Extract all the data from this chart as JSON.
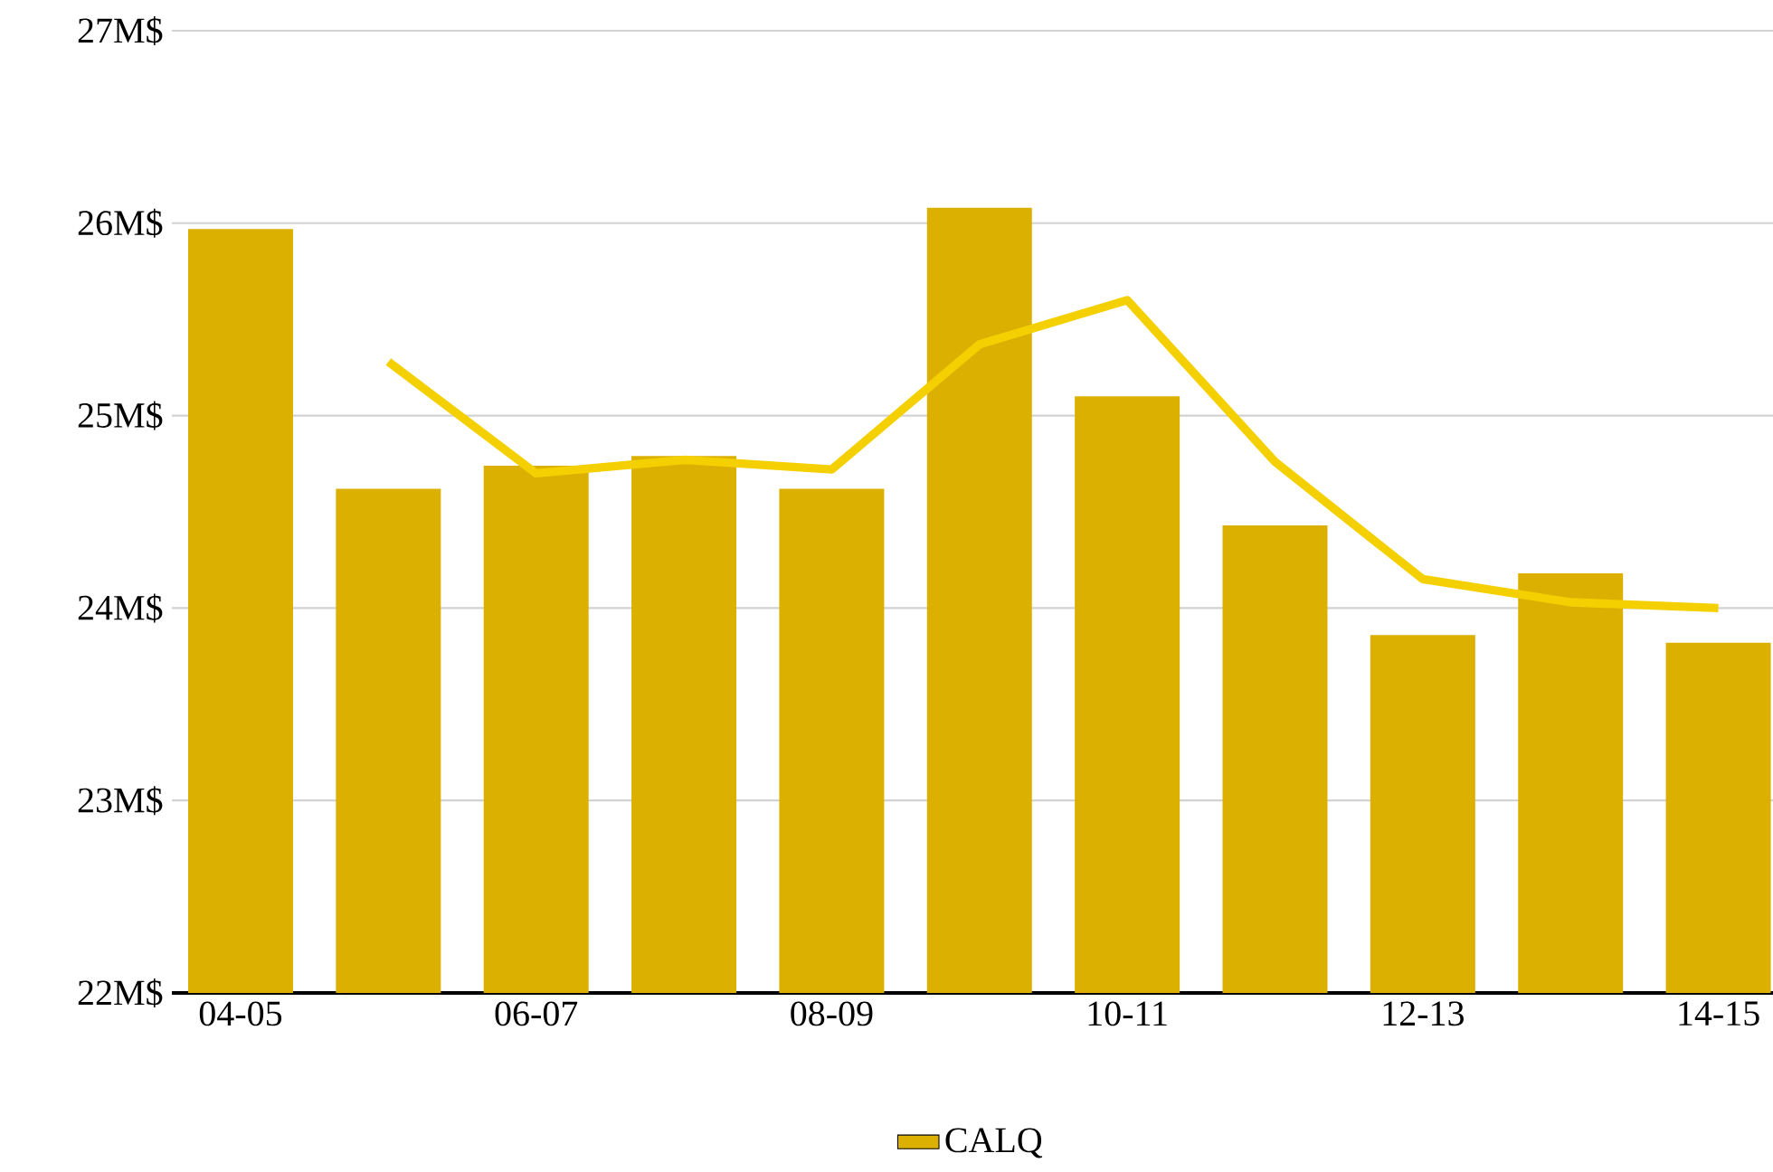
{
  "chart_data": {
    "type": "bar",
    "categories": [
      "04-05",
      null,
      "06-07",
      null,
      "08-09",
      null,
      "10-11",
      null,
      "12-13",
      null,
      "14-15"
    ],
    "series": [
      {
        "name": "CALQ",
        "color": "#dbb000",
        "values": [
          25.97,
          24.62,
          24.74,
          24.79,
          24.62,
          26.08,
          25.1,
          24.43,
          23.86,
          24.18,
          23.82
        ]
      },
      {
        "type": "line",
        "color": "#f5d000",
        "values": [
          null,
          25.28,
          24.7,
          24.77,
          24.72,
          25.37,
          25.6,
          24.76,
          24.15,
          24.03,
          24.0
        ]
      }
    ],
    "ylim": [
      22,
      27
    ],
    "yticks": [
      {
        "value": 22,
        "label": "22M$"
      },
      {
        "value": 23,
        "label": "23M$"
      },
      {
        "value": 24,
        "label": "24M$"
      },
      {
        "value": 25,
        "label": "25M$"
      },
      {
        "value": 26,
        "label": "26M$"
      },
      {
        "value": 27,
        "label": "27M$"
      }
    ],
    "grid": "y",
    "legend": "bottom",
    "marker": "none"
  }
}
